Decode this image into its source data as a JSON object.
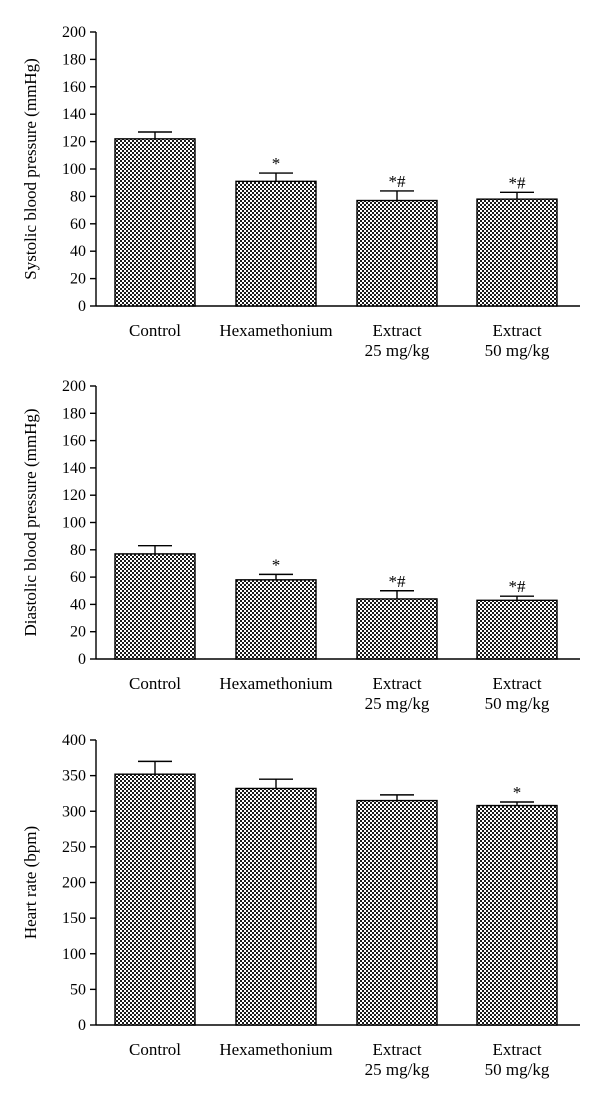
{
  "chart_data": [
    {
      "type": "bar",
      "ylabel": "Systolic blood pressure (mmHg)",
      "ylim": [
        0,
        200
      ],
      "yticks": [
        0,
        20,
        40,
        60,
        80,
        100,
        120,
        140,
        160,
        180,
        200
      ],
      "categories": [
        [
          "Control"
        ],
        [
          "Hexamethonium"
        ],
        [
          "Extract",
          "25 mg/kg"
        ],
        [
          "Extract",
          "50 mg/kg"
        ]
      ],
      "values": [
        122,
        91,
        77,
        78
      ],
      "errors": [
        5,
        6,
        7,
        5
      ],
      "annotations": [
        "",
        "*",
        "*#",
        "*#"
      ],
      "fill_pattern": "checkerboard"
    },
    {
      "type": "bar",
      "ylabel": "Diastolic blood pressure (mmHg)",
      "ylim": [
        0,
        200
      ],
      "yticks": [
        0,
        20,
        40,
        60,
        80,
        100,
        120,
        140,
        160,
        180,
        200
      ],
      "categories": [
        [
          "Control"
        ],
        [
          "Hexamethonium"
        ],
        [
          "Extract",
          "25 mg/kg"
        ],
        [
          "Extract",
          "50 mg/kg"
        ]
      ],
      "values": [
        77,
        58,
        44,
        43
      ],
      "errors": [
        6,
        4,
        6,
        3
      ],
      "annotations": [
        "",
        "*",
        "*#",
        "*#"
      ],
      "fill_pattern": "checkerboard"
    },
    {
      "type": "bar",
      "ylabel": "Heart rate (bpm)",
      "ylim": [
        0,
        400
      ],
      "yticks": [
        0,
        50,
        100,
        150,
        200,
        250,
        300,
        350,
        400
      ],
      "categories": [
        [
          "Control"
        ],
        [
          "Hexamethonium"
        ],
        [
          "Extract",
          "25 mg/kg"
        ],
        [
          "Extract",
          "50 mg/kg"
        ]
      ],
      "values": [
        352,
        332,
        315,
        308
      ],
      "errors": [
        18,
        13,
        8,
        5
      ],
      "annotations": [
        "",
        "",
        "",
        "*"
      ],
      "fill_pattern": "checkerboard"
    }
  ]
}
